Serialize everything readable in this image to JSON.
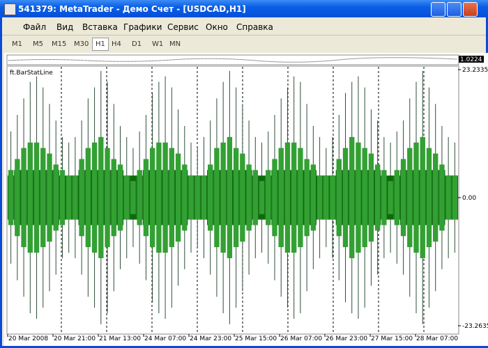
{
  "window": {
    "title": "541379: MetaTrader - Демо Счет - [USDCAD,H1]"
  },
  "menu": [
    "Файл",
    "Вид",
    "Вставка",
    "Графики",
    "Сервис",
    "Окно",
    "Справка"
  ],
  "timeframes": [
    "M1",
    "M5",
    "M15",
    "M30",
    "H1",
    "H4",
    "D1",
    "W1",
    "MN"
  ],
  "active_timeframe": "H1",
  "top_panel": {
    "price_label": "1.0224"
  },
  "chart_data": {
    "type": "bar",
    "indicator": "ft.BarStatLine",
    "ylim": [
      -23.2635,
      23.2335
    ],
    "yticks": [
      23.2335,
      {
        "value": 0,
        "label": "0.00"
      },
      -23.2635
    ],
    "time_labels": [
      "20 Mar 2008",
      "20 Mar 21:00",
      "21 Mar 13:00",
      "24 Mar 07:00",
      "24 Mar 23:00",
      "25 Mar 15:00",
      "26 Mar 07:00",
      "26 Mar 23:00",
      "27 Mar 15:00",
      "28 Mar 07:00"
    ],
    "series": [
      {
        "name": "thin",
        "color": "#2f4f3a",
        "values": [
          12,
          15,
          18,
          21,
          22,
          20,
          17,
          14,
          11,
          10,
          11,
          14,
          18,
          20,
          23,
          21,
          17,
          13,
          11,
          9,
          12,
          15,
          19,
          21,
          22,
          20,
          16,
          13,
          10,
          9,
          11,
          14,
          18,
          21,
          23,
          20,
          17,
          14,
          11,
          10,
          12,
          15,
          18,
          20,
          22,
          21,
          17,
          13,
          11,
          9,
          11,
          15,
          19,
          21,
          22,
          20,
          16,
          14,
          11,
          10,
          12,
          14,
          18,
          21,
          23,
          20,
          17,
          13,
          11,
          10
        ]
      },
      {
        "name": "dark",
        "color": "#0b6b0b",
        "values": [
          4,
          5,
          5,
          5,
          5,
          5,
          5,
          5,
          4,
          4,
          4,
          5,
          5,
          5,
          5,
          5,
          5,
          5,
          4,
          4,
          4,
          5,
          5,
          5,
          5,
          5,
          5,
          5,
          4,
          4,
          4,
          5,
          5,
          5,
          5,
          5,
          5,
          5,
          4,
          4,
          4,
          5,
          5,
          5,
          5,
          5,
          5,
          5,
          4,
          4,
          4,
          5,
          5,
          5,
          5,
          5,
          5,
          5,
          4,
          4,
          4,
          5,
          5,
          5,
          5,
          5,
          5,
          5,
          4,
          4
        ]
      },
      {
        "name": "light",
        "color": "#33a033",
        "values": [
          5,
          7,
          9,
          10,
          10,
          9,
          8,
          6,
          5,
          4,
          4,
          7,
          9,
          10,
          11,
          9,
          7,
          6,
          4,
          3,
          5,
          7,
          9,
          10,
          10,
          9,
          8,
          6,
          4,
          4,
          4,
          6,
          9,
          10,
          11,
          9,
          8,
          6,
          5,
          3,
          5,
          7,
          9,
          10,
          10,
          9,
          7,
          6,
          4,
          4,
          4,
          7,
          9,
          11,
          10,
          9,
          8,
          6,
          5,
          3,
          5,
          7,
          9,
          10,
          11,
          9,
          8,
          6,
          4,
          4
        ]
      }
    ]
  }
}
